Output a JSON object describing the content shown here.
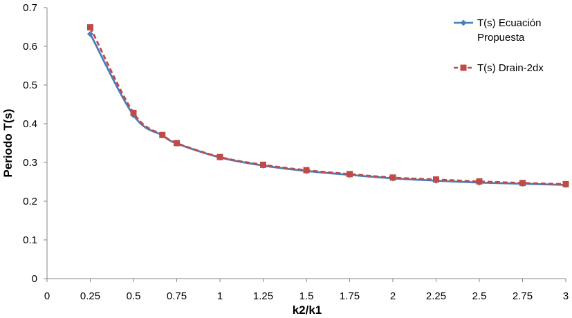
{
  "chart_data": {
    "type": "line",
    "title": "",
    "xlabel": "k2/k1",
    "ylabel": "Periodo T(s)",
    "xlim": [
      0,
      3
    ],
    "ylim": [
      0,
      0.7
    ],
    "x_ticks": [
      "0",
      "0.25",
      "0.5",
      "0.75",
      "1",
      "1.25",
      "1.5",
      "1.75",
      "2",
      "2.25",
      "2.5",
      "2.75",
      "3"
    ],
    "y_ticks": [
      "0",
      "0.1",
      "0.2",
      "0.3",
      "0.4",
      "0.5",
      "0.6",
      "0.7"
    ],
    "grid": false,
    "legend_position": "top-right",
    "series": [
      {
        "name": "T(s) Ecuación Propuesta",
        "color": "#4a7ebb",
        "line_style": "solid",
        "marker": "diamond",
        "points": [
          {
            "x": 0.25,
            "y": 0.632
          },
          {
            "x": 0.5,
            "y": 0.422
          },
          {
            "x": 0.667,
            "y": 0.37
          },
          {
            "x": 0.75,
            "y": 0.349
          },
          {
            "x": 1,
            "y": 0.313
          },
          {
            "x": 1.25,
            "y": 0.292
          },
          {
            "x": 1.5,
            "y": 0.278
          },
          {
            "x": 1.75,
            "y": 0.268
          },
          {
            "x": 2,
            "y": 0.259
          },
          {
            "x": 2.25,
            "y": 0.253
          },
          {
            "x": 2.5,
            "y": 0.248
          },
          {
            "x": 2.75,
            "y": 0.245
          },
          {
            "x": 3,
            "y": 0.242
          }
        ]
      },
      {
        "name": "T(s) Drain-2dx",
        "color": "#be4b48",
        "line_style": "dashed",
        "marker": "square",
        "points": [
          {
            "x": 0.25,
            "y": 0.649
          },
          {
            "x": 0.5,
            "y": 0.428
          },
          {
            "x": 0.667,
            "y": 0.371
          },
          {
            "x": 0.75,
            "y": 0.35
          },
          {
            "x": 1,
            "y": 0.314
          },
          {
            "x": 1.25,
            "y": 0.294
          },
          {
            "x": 1.5,
            "y": 0.28
          },
          {
            "x": 1.75,
            "y": 0.27
          },
          {
            "x": 2,
            "y": 0.261
          },
          {
            "x": 2.25,
            "y": 0.256
          },
          {
            "x": 2.5,
            "y": 0.251
          },
          {
            "x": 2.75,
            "y": 0.247
          },
          {
            "x": 3,
            "y": 0.244
          }
        ]
      }
    ]
  }
}
